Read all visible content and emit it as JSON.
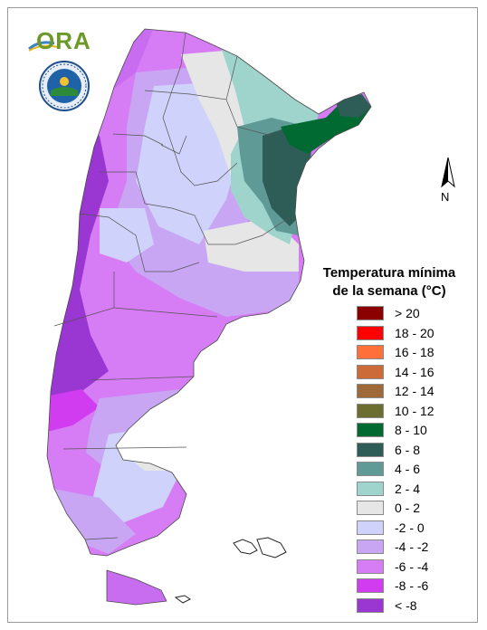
{
  "legend": {
    "title_line1": "Temperatura mínima",
    "title_line2": "de la semana (°C)",
    "items": [
      {
        "label": "> 20",
        "color": "#8b0000"
      },
      {
        "label": "18 - 20",
        "color": "#ff0000"
      },
      {
        "label": "16 - 18",
        "color": "#ff6f3a"
      },
      {
        "label": "14 - 16",
        "color": "#cc6a38"
      },
      {
        "label": "12 - 14",
        "color": "#a06a38"
      },
      {
        "label": "10 - 12",
        "color": "#6b6e2e"
      },
      {
        "label": "8 - 10",
        "color": "#006a32"
      },
      {
        "label": "6 - 8",
        "color": "#2e5d58"
      },
      {
        "label": "4 - 6",
        "color": "#5f9a96"
      },
      {
        "label": "2 - 4",
        "color": "#9ed4cc"
      },
      {
        "label": "0 - 2",
        "color": "#e6e6e6"
      },
      {
        "label": "-2 - 0",
        "color": "#cfd2fa"
      },
      {
        "label": "-4 - -2",
        "color": "#c8a6f4"
      },
      {
        "label": "-6 - -4",
        "color": "#d67cf4"
      },
      {
        "label": "-8 - -6",
        "color": "#d23cf0"
      },
      {
        "label": "< -8",
        "color": "#9a36d2"
      }
    ]
  },
  "logo": {
    "text": "ORA"
  },
  "north_arrow": {
    "label": "N"
  },
  "map": {
    "palette": {
      "lt_neg8": "#9a36d2",
      "neg8_neg6": "#d23cf0",
      "neg6_neg4": "#d67cf4",
      "neg4_neg2": "#c8a6f4",
      "neg2_0": "#cfd2fa",
      "0_2": "#e6e6e6",
      "2_4": "#9ed4cc",
      "4_6": "#5f9a96",
      "6_8": "#2e5d58",
      "8_10": "#006a32"
    }
  }
}
